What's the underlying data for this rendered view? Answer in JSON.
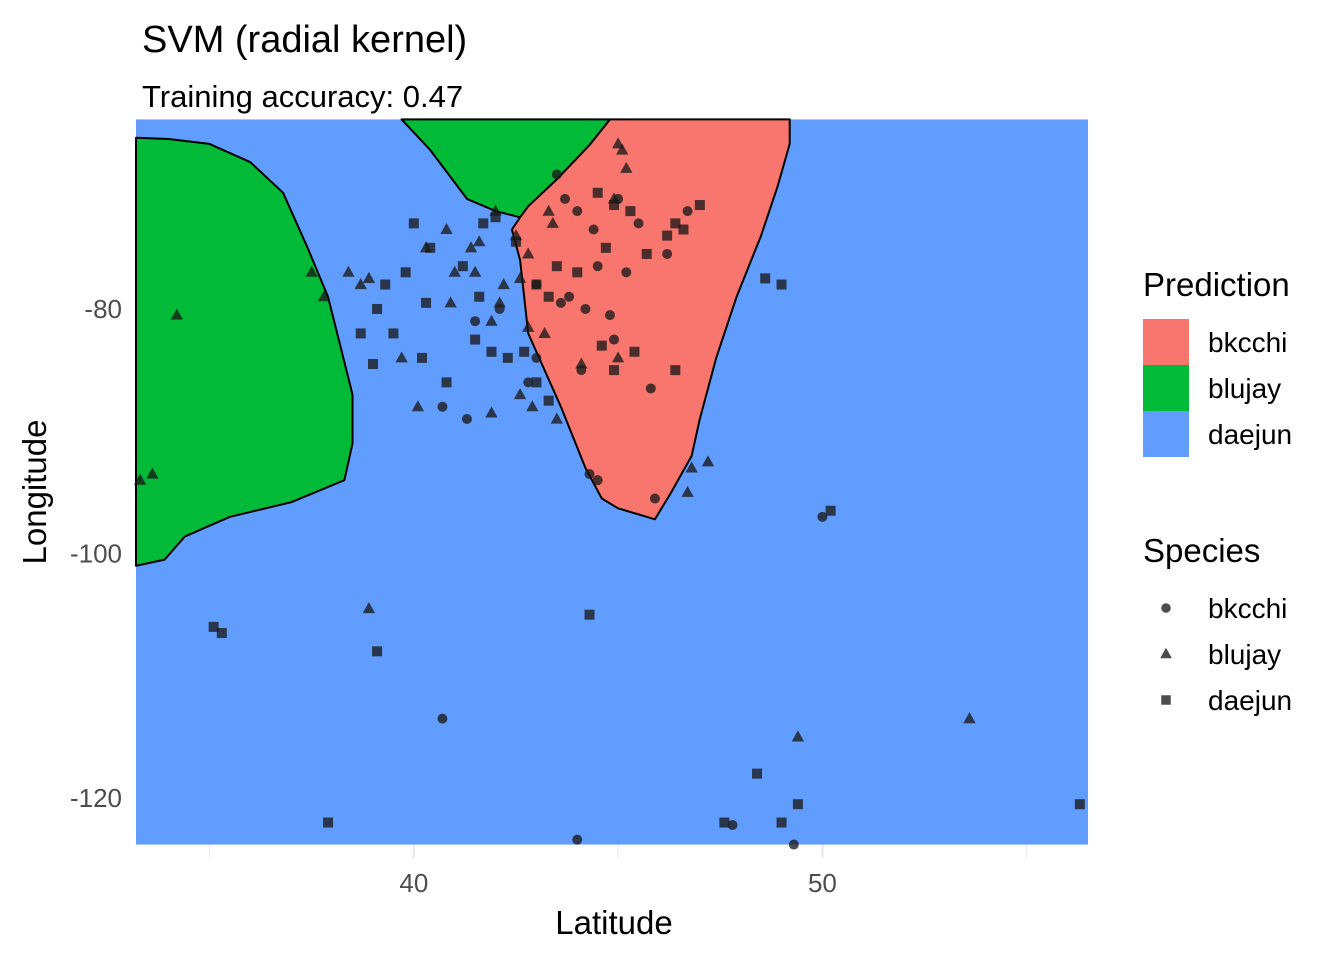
{
  "chart_data": {
    "type": "scatter",
    "title": "SVM (radial kernel)",
    "subtitle": "Training accuracy: 0.47",
    "xlabel": "Latitude",
    "ylabel": "Longitude",
    "xlim": [
      33.2,
      56.5
    ],
    "ylim": [
      -124.9,
      -65.2
    ],
    "x_ticks": [
      40,
      50
    ],
    "y_ticks": [
      -80,
      -100,
      -120
    ],
    "x_minor": [
      35,
      45,
      55
    ],
    "y_minor": [
      -70,
      -90,
      -110
    ],
    "grid": true,
    "data_extent": {
      "x": [
        33.2,
        56.5
      ],
      "y": [
        -123.8,
        -64.5
      ]
    },
    "colors": {
      "bkcchi": "#F8766D",
      "blujay": "#00BA38",
      "daejun": "#619CFF",
      "grid": "#EBEBEB",
      "point": "#1a1a1a"
    },
    "regions": [
      {
        "class": "blujay",
        "boundary": [
          [
            33.2,
            -66.0
          ],
          [
            34.0,
            -66.1
          ],
          [
            35.0,
            -66.5
          ],
          [
            36.0,
            -68.0
          ],
          [
            36.8,
            -70.5
          ],
          [
            37.4,
            -75.0
          ],
          [
            37.9,
            -79.0
          ],
          [
            38.2,
            -83.0
          ],
          [
            38.5,
            -87.0
          ],
          [
            38.5,
            -91.0
          ],
          [
            38.3,
            -94.0
          ],
          [
            37.0,
            -95.8
          ],
          [
            35.5,
            -97.0
          ],
          [
            34.4,
            -98.6
          ],
          [
            33.9,
            -100.5
          ],
          [
            33.2,
            -101.0
          ]
        ]
      },
      {
        "class": "blujay",
        "boundary": [
          [
            39.7,
            -64.5
          ],
          [
            44.8,
            -64.5
          ],
          [
            44.3,
            -66.6
          ],
          [
            43.5,
            -69.4
          ],
          [
            42.8,
            -71.6
          ],
          [
            42.6,
            -72.5
          ],
          [
            42.0,
            -72.0
          ],
          [
            41.3,
            -71.0
          ],
          [
            40.4,
            -67.0
          ]
        ]
      },
      {
        "class": "bkcchi",
        "boundary": [
          [
            44.8,
            -64.5
          ],
          [
            49.2,
            -64.5
          ],
          [
            49.2,
            -66.5
          ],
          [
            48.9,
            -70.0
          ],
          [
            48.5,
            -74.0
          ],
          [
            47.9,
            -79.0
          ],
          [
            47.4,
            -84.0
          ],
          [
            47.0,
            -89.0
          ],
          [
            46.8,
            -92.0
          ],
          [
            46.3,
            -95.0
          ],
          [
            45.9,
            -97.2
          ],
          [
            45.0,
            -96.3
          ],
          [
            44.6,
            -95.5
          ],
          [
            44.2,
            -93.0
          ],
          [
            43.6,
            -88.0
          ],
          [
            42.8,
            -82.0
          ],
          [
            42.6,
            -76.0
          ],
          [
            42.4,
            -73.5
          ],
          [
            42.6,
            -72.5
          ],
          [
            42.8,
            -71.6
          ],
          [
            43.5,
            -69.4
          ],
          [
            44.3,
            -66.6
          ]
        ]
      }
    ],
    "series": [
      {
        "name": "bkcchi",
        "shape": "circle",
        "x": [
          43.5,
          43.7,
          44.0,
          44.4,
          45.0,
          45.5,
          46.2,
          46.7,
          44.5,
          43.8,
          44.2,
          44.8,
          45.2,
          44.9,
          43.6,
          43.0,
          45.8,
          44.1,
          41.5,
          42.1,
          43.0,
          40.7,
          41.3,
          42.8,
          44.3,
          44.5,
          45.9,
          50.0,
          40.7,
          44.0,
          47.8,
          49.3
        ],
        "y": [
          -69.0,
          -71.0,
          -72.0,
          -73.5,
          -71.0,
          -73.0,
          -75.5,
          -72.0,
          -76.5,
          -79.0,
          -80.0,
          -80.5,
          -77.0,
          -82.5,
          -79.5,
          -78.0,
          -86.5,
          -85.0,
          -81.0,
          -80.0,
          -84.0,
          -88.0,
          -89.0,
          -86.0,
          -93.5,
          -94.0,
          -95.5,
          -97.0,
          -113.5,
          -123.4,
          -122.2,
          -123.8
        ]
      },
      {
        "name": "blujay",
        "shape": "triangle",
        "x": [
          45.0,
          45.1,
          45.2,
          44.9,
          43.3,
          43.4,
          42.5,
          42.8,
          42.6,
          41.6,
          42.0,
          40.8,
          41.4,
          41.0,
          40.3,
          40.9,
          41.9,
          42.1,
          42.8,
          43.2,
          42.2,
          41.5,
          39.7,
          37.8,
          37.5,
          38.4,
          38.7,
          38.9,
          40.1,
          41.9,
          42.6,
          42.9,
          43.5,
          44.1,
          45.0,
          46.7,
          46.8,
          47.2,
          34.2,
          33.3,
          33.6,
          38.9,
          49.4,
          53.6
        ],
        "y": [
          -66.5,
          -67.0,
          -68.5,
          -71.0,
          -72.0,
          -73.0,
          -74.0,
          -75.5,
          -77.5,
          -74.5,
          -72.0,
          -73.5,
          -75.0,
          -77.0,
          -75.0,
          -79.5,
          -81.0,
          -79.5,
          -81.5,
          -82.0,
          -78.0,
          -77.0,
          -84.0,
          -79.0,
          -77.0,
          -77.0,
          -78.0,
          -77.5,
          -88.0,
          -88.5,
          -87.0,
          -88.0,
          -89.0,
          -84.5,
          -84.0,
          -95.0,
          -93.0,
          -92.5,
          -80.5,
          -94.0,
          -93.5,
          -104.5,
          -115.0,
          -113.5
        ]
      },
      {
        "name": "daejun",
        "shape": "square",
        "x": [
          44.5,
          44.9,
          45.3,
          46.2,
          45.7,
          46.4,
          46.6,
          47.0,
          44.7,
          43.5,
          43.0,
          42.5,
          42.0,
          41.7,
          40.0,
          40.4,
          41.2,
          41.6,
          40.3,
          39.8,
          39.3,
          39.1,
          39.0,
          38.7,
          39.5,
          40.2,
          40.8,
          41.5,
          41.9,
          42.3,
          42.7,
          43.0,
          43.3,
          44.6,
          44.9,
          45.4,
          46.4,
          48.6,
          49.0,
          35.1,
          35.3,
          39.1,
          44.3,
          37.9,
          47.6,
          48.4,
          49.0,
          49.4,
          56.3,
          50.2,
          43.3,
          44.0
        ],
        "y": [
          -70.5,
          -71.5,
          -72.0,
          -74.0,
          -75.5,
          -73.0,
          -73.5,
          -71.5,
          -75.0,
          -76.5,
          -78.0,
          -74.5,
          -72.5,
          -73.0,
          -73.0,
          -75.0,
          -76.5,
          -79.0,
          -79.5,
          -77.0,
          -78.0,
          -80.0,
          -84.5,
          -82.0,
          -82.0,
          -84.0,
          -86.0,
          -82.5,
          -83.5,
          -84.0,
          -83.5,
          -86.0,
          -87.5,
          -83.0,
          -85.0,
          -83.5,
          -85.0,
          -77.5,
          -78.0,
          -106.0,
          -106.5,
          -108.0,
          -105.0,
          -122.0,
          -122.0,
          -118.0,
          -122.0,
          -120.5,
          -120.5,
          -96.5,
          -79.0,
          -77.0
        ]
      }
    ],
    "legends": [
      {
        "title": "Prediction",
        "kind": "fill",
        "entries": [
          "bkcchi",
          "blujay",
          "daejun"
        ]
      },
      {
        "title": "Species",
        "kind": "shape",
        "entries": [
          "bkcchi",
          "blujay",
          "daejun"
        ]
      }
    ]
  }
}
